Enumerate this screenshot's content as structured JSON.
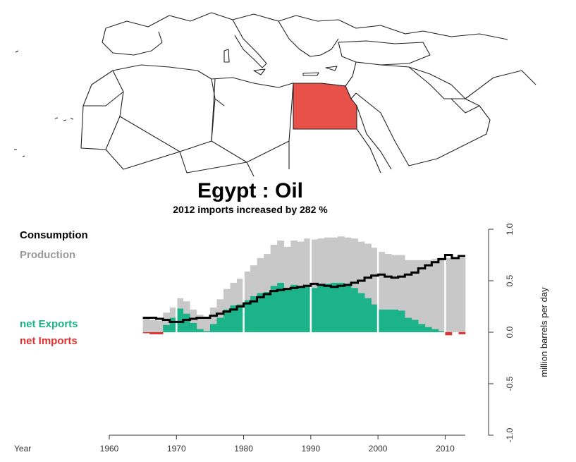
{
  "chart_data": {
    "type": "bar",
    "title": "Egypt :  Oil",
    "subtitle": "2012 imports increased by 282 %",
    "country_highlight": "Egypt",
    "ylabel": "million barrels per day",
    "xlabel": "Year",
    "ylim": [
      -1.0,
      1.0
    ],
    "xlim": [
      1960,
      2013
    ],
    "x_ticks": [
      "1960",
      "1970",
      "1980",
      "1990",
      "2000",
      "2010"
    ],
    "y_ticks": [
      "1.0",
      "0.5",
      "0.0",
      "-0.5",
      "-1.0"
    ],
    "legend": {
      "consumption": "Consumption",
      "production": "Production",
      "net_exports": "net Exports",
      "net_imports": "net Imports"
    },
    "years": [
      1965,
      1966,
      1967,
      1968,
      1969,
      1970,
      1971,
      1972,
      1973,
      1974,
      1975,
      1976,
      1977,
      1978,
      1979,
      1980,
      1981,
      1982,
      1983,
      1984,
      1985,
      1986,
      1987,
      1988,
      1989,
      1990,
      1991,
      1992,
      1993,
      1994,
      1995,
      1996,
      1997,
      1998,
      1999,
      2000,
      2001,
      2002,
      2003,
      2004,
      2005,
      2006,
      2007,
      2008,
      2009,
      2010,
      2011,
      2012
    ],
    "series": [
      {
        "name": "Production",
        "values": [
          0.13,
          0.12,
          0.11,
          0.19,
          0.24,
          0.33,
          0.3,
          0.22,
          0.17,
          0.15,
          0.24,
          0.32,
          0.42,
          0.48,
          0.52,
          0.59,
          0.65,
          0.72,
          0.76,
          0.85,
          0.89,
          0.83,
          0.89,
          0.88,
          0.91,
          0.9,
          0.91,
          0.92,
          0.92,
          0.93,
          0.92,
          0.91,
          0.88,
          0.86,
          0.82,
          0.78,
          0.76,
          0.75,
          0.75,
          0.7,
          0.7,
          0.7,
          0.7,
          0.71,
          0.72,
          0.72,
          0.72,
          0.72
        ]
      },
      {
        "name": "Consumption",
        "values": [
          0.14,
          0.14,
          0.13,
          0.12,
          0.1,
          0.1,
          0.12,
          0.13,
          0.14,
          0.14,
          0.16,
          0.18,
          0.2,
          0.22,
          0.25,
          0.28,
          0.3,
          0.34,
          0.37,
          0.4,
          0.41,
          0.42,
          0.43,
          0.44,
          0.45,
          0.47,
          0.46,
          0.45,
          0.44,
          0.45,
          0.46,
          0.48,
          0.5,
          0.53,
          0.55,
          0.56,
          0.54,
          0.53,
          0.54,
          0.56,
          0.58,
          0.62,
          0.65,
          0.68,
          0.71,
          0.75,
          0.72,
          0.74
        ]
      },
      {
        "name": "net Exports",
        "values": [
          0,
          0,
          0,
          0.07,
          0.14,
          0.23,
          0.18,
          0.09,
          0.03,
          0.01,
          0.08,
          0.14,
          0.22,
          0.26,
          0.27,
          0.31,
          0.35,
          0.38,
          0.39,
          0.45,
          0.48,
          0.41,
          0.46,
          0.44,
          0.46,
          0.43,
          0.45,
          0.47,
          0.48,
          0.48,
          0.46,
          0.43,
          0.38,
          0.33,
          0.27,
          0.22,
          0.22,
          0.22,
          0.21,
          0.14,
          0.12,
          0.08,
          0.05,
          0.03,
          0.01,
          0,
          0,
          0
        ]
      },
      {
        "name": "net Imports",
        "values": [
          0.01,
          0.02,
          0.02,
          0,
          0,
          0,
          0,
          0,
          0,
          0,
          0,
          0,
          0,
          0,
          0,
          0,
          0,
          0,
          0,
          0,
          0,
          0,
          0,
          0,
          0,
          0,
          0,
          0,
          0,
          0,
          0,
          0,
          0,
          0,
          0,
          0,
          0,
          0,
          0,
          0,
          0,
          0,
          0,
          0,
          0,
          0.03,
          0,
          0.02
        ]
      }
    ],
    "colors": {
      "production": "#c8c8c8",
      "consumption": "#000000",
      "net_exports": "#1db38a",
      "net_imports": "#e03030",
      "egypt_fill": "#e8514a",
      "decade_lines": "#ffffff"
    },
    "grid": false
  }
}
